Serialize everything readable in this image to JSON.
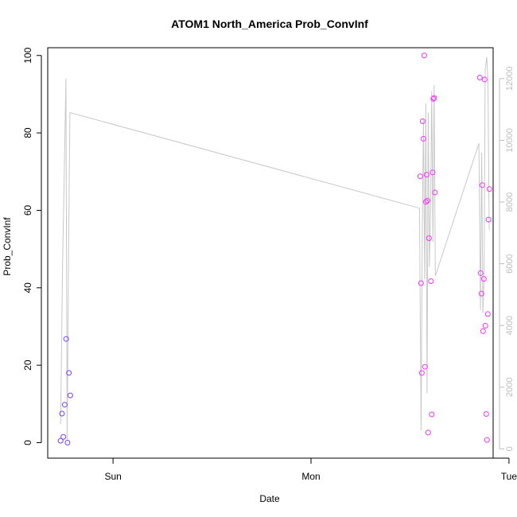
{
  "chart_data": {
    "type": "scatter",
    "title": "ATOM1 North_America Prob_ConvInf",
    "xlabel": "Date",
    "ylabel": "Prob_ConvInf",
    "x_ticks": [
      "Sun",
      "Mon",
      "Tue"
    ],
    "x_tick_days": [
      1,
      2,
      3
    ],
    "xlim_days": [
      0.67,
      2.92
    ],
    "ylim": [
      -4,
      102
    ],
    "y_ticks": [
      0,
      20,
      40,
      60,
      80,
      100
    ],
    "y2lim": [
      -300,
      13000
    ],
    "y2_ticks": [
      0,
      2000,
      4000,
      6000,
      8000,
      10000,
      12000
    ],
    "grid": false,
    "colors": {
      "points_start": "#7b3fff",
      "points_end": "#ff33ff",
      "line": "#c8c8c8"
    },
    "points": [
      {
        "day": 0.735,
        "value": 0.5
      },
      {
        "day": 0.742,
        "value": 7.5
      },
      {
        "day": 0.749,
        "value": 1.5
      },
      {
        "day": 0.756,
        "value": 9.8
      },
      {
        "day": 0.763,
        "value": 26.8
      },
      {
        "day": 0.77,
        "value": 0.0
      },
      {
        "day": 0.777,
        "value": 18.0
      },
      {
        "day": 0.784,
        "value": 12.2
      },
      {
        "day": 2.552,
        "value": 68.8
      },
      {
        "day": 2.556,
        "value": 41.2
      },
      {
        "day": 2.56,
        "value": 18.0
      },
      {
        "day": 2.564,
        "value": 83.0
      },
      {
        "day": 2.568,
        "value": 78.5
      },
      {
        "day": 2.572,
        "value": 100.0
      },
      {
        "day": 2.576,
        "value": 19.6
      },
      {
        "day": 2.58,
        "value": 62.2
      },
      {
        "day": 2.584,
        "value": 69.2
      },
      {
        "day": 2.588,
        "value": 62.5
      },
      {
        "day": 2.592,
        "value": 2.6
      },
      {
        "day": 2.596,
        "value": 52.8
      },
      {
        "day": 2.606,
        "value": 41.7
      },
      {
        "day": 2.61,
        "value": 7.3
      },
      {
        "day": 2.614,
        "value": 69.8
      },
      {
        "day": 2.618,
        "value": 88.8
      },
      {
        "day": 2.622,
        "value": 89.0
      },
      {
        "day": 2.626,
        "value": 64.6
      },
      {
        "day": 2.853,
        "value": 94.3
      },
      {
        "day": 2.857,
        "value": 43.8
      },
      {
        "day": 2.861,
        "value": 38.5
      },
      {
        "day": 2.865,
        "value": 66.5
      },
      {
        "day": 2.869,
        "value": 28.8
      },
      {
        "day": 2.873,
        "value": 42.3
      },
      {
        "day": 2.877,
        "value": 93.8
      },
      {
        "day": 2.881,
        "value": 30.2
      },
      {
        "day": 2.885,
        "value": 7.4
      },
      {
        "day": 2.889,
        "value": 0.7
      },
      {
        "day": 2.893,
        "value": 33.2
      },
      {
        "day": 2.897,
        "value": 57.6
      },
      {
        "day": 2.901,
        "value": 65.5
      }
    ],
    "line_series": [
      {
        "day": 0.735,
        "value": 800
      },
      {
        "day": 0.745,
        "value": 6000
      },
      {
        "day": 0.755,
        "value": 9500
      },
      {
        "day": 0.762,
        "value": 12000
      },
      {
        "day": 0.768,
        "value": 300
      },
      {
        "day": 0.775,
        "value": 6000
      },
      {
        "day": 0.782,
        "value": 10900
      },
      {
        "day": 2.548,
        "value": 7800
      },
      {
        "day": 2.556,
        "value": 600
      },
      {
        "day": 2.562,
        "value": 7000
      },
      {
        "day": 2.568,
        "value": 10700
      },
      {
        "day": 2.574,
        "value": 5500
      },
      {
        "day": 2.58,
        "value": 11200
      },
      {
        "day": 2.586,
        "value": 1800
      },
      {
        "day": 2.592,
        "value": 10900
      },
      {
        "day": 2.598,
        "value": 5900
      },
      {
        "day": 2.604,
        "value": 7900
      },
      {
        "day": 2.61,
        "value": 11600
      },
      {
        "day": 2.616,
        "value": 6700
      },
      {
        "day": 2.622,
        "value": 11800
      },
      {
        "day": 2.628,
        "value": 5600
      },
      {
        "day": 2.848,
        "value": 9900
      },
      {
        "day": 2.856,
        "value": 4500
      },
      {
        "day": 2.862,
        "value": 9600
      },
      {
        "day": 2.868,
        "value": 4400
      },
      {
        "day": 2.874,
        "value": 5600
      },
      {
        "day": 2.88,
        "value": 12300
      },
      {
        "day": 2.888,
        "value": 12700
      },
      {
        "day": 2.894,
        "value": 11900
      },
      {
        "day": 2.9,
        "value": 7100
      }
    ]
  }
}
